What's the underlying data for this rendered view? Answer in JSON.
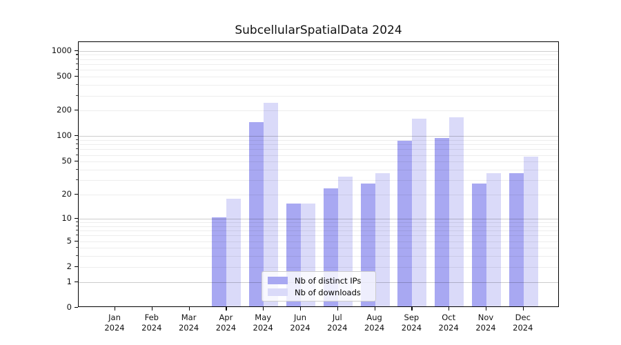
{
  "title": "SubcellularSpatialData 2024",
  "legend": {
    "items": [
      {
        "label": "Nb of distinct IPs",
        "color": "#a8a8f2"
      },
      {
        "label": "Nb of downloads",
        "color": "#dadaf9"
      }
    ]
  },
  "chart_data": {
    "type": "bar",
    "title": "SubcellularSpatialData 2024",
    "categories": [
      "Jan 2024",
      "Feb 2024",
      "Mar 2024",
      "Apr 2024",
      "May 2024",
      "Jun 2024",
      "Jul 2024",
      "Aug 2024",
      "Sep 2024",
      "Oct 2024",
      "Nov 2024",
      "Dec 2024"
    ],
    "x_tick_month": [
      "Jan",
      "Feb",
      "Mar",
      "Apr",
      "May",
      "Jun",
      "Jul",
      "Aug",
      "Sep",
      "Oct",
      "Nov",
      "Dec"
    ],
    "x_tick_year": "2024",
    "series": [
      {
        "name": "Nb of distinct IPs",
        "color": "#a8a8f2",
        "values": [
          0,
          0,
          0,
          10,
          140,
          15,
          23,
          26,
          85,
          92,
          26,
          35
        ]
      },
      {
        "name": "Nb of downloads",
        "color": "#dadaf9",
        "values": [
          0,
          0,
          0,
          17,
          240,
          15,
          32,
          35,
          155,
          160,
          35,
          55
        ]
      }
    ],
    "yscale": "log1p",
    "ylim": [
      0,
      1100
    ],
    "y_tick_labels": [
      1000,
      500,
      200,
      100,
      50,
      20,
      10,
      5,
      2,
      1,
      0
    ],
    "y_major_grid": [
      1,
      10,
      100,
      1000
    ],
    "y_minor_grid": [
      2,
      3,
      4,
      5,
      6,
      7,
      8,
      9,
      20,
      30,
      40,
      50,
      60,
      70,
      80,
      90,
      200,
      300,
      400,
      500,
      600,
      700,
      800,
      900
    ],
    "grid": "horizontal",
    "legend_position": "lower center"
  },
  "colors": {
    "background": "#ffffff",
    "spine": "#000000",
    "bar_dark": "#a8a8f2",
    "bar_light": "#dadaf9",
    "grid_major": "#c8c8c8",
    "grid_minor": "#ededed",
    "text": "#111111"
  }
}
